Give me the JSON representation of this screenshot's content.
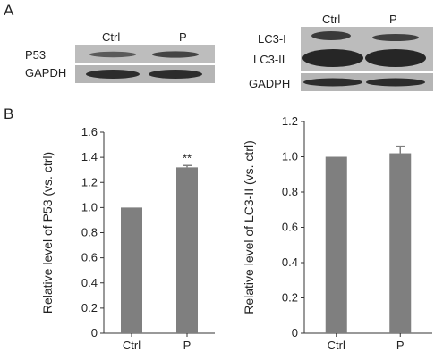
{
  "panels": {
    "a": "A",
    "b": "B"
  },
  "blot_left": {
    "lanes": [
      "Ctrl",
      "P"
    ],
    "rows": [
      "P53",
      "GAPDH"
    ]
  },
  "blot_right": {
    "lanes": [
      "Ctrl",
      "P"
    ],
    "rows": [
      "LC3-I",
      "LC3-II",
      "GADPH"
    ]
  },
  "colors": {
    "bar": "#7f7f7f",
    "axis": "#333333",
    "blot_bg": "#b9b9b9",
    "band": "#2a2a2a"
  },
  "chart_data": [
    {
      "type": "bar",
      "categories": [
        "Ctrl",
        "P"
      ],
      "values": [
        1.0,
        1.32
      ],
      "errors": [
        0.0,
        0.015
      ],
      "annotations": [
        "",
        "**"
      ],
      "title": "",
      "xlabel": "",
      "ylabel": "Relative level of P53 (vs. ctrl)",
      "ylim": [
        0,
        1.6
      ],
      "yticks": [
        "0",
        "0.2",
        "0.4",
        "0.6",
        "0.8",
        "1.0",
        "1.2",
        "1.4",
        "1.6"
      ],
      "grid": false
    },
    {
      "type": "bar",
      "categories": [
        "Ctrl",
        "P"
      ],
      "values": [
        1.0,
        1.02
      ],
      "errors": [
        0.0,
        0.04
      ],
      "annotations": [
        "",
        ""
      ],
      "title": "",
      "xlabel": "",
      "ylabel": "Relative level of LC3-II (vs. ctrl)",
      "ylim": [
        0,
        1.2
      ],
      "yticks": [
        "0",
        "0.2",
        "0.4",
        "0.6",
        "0.8",
        "1.0",
        "1.2"
      ],
      "grid": false
    }
  ]
}
